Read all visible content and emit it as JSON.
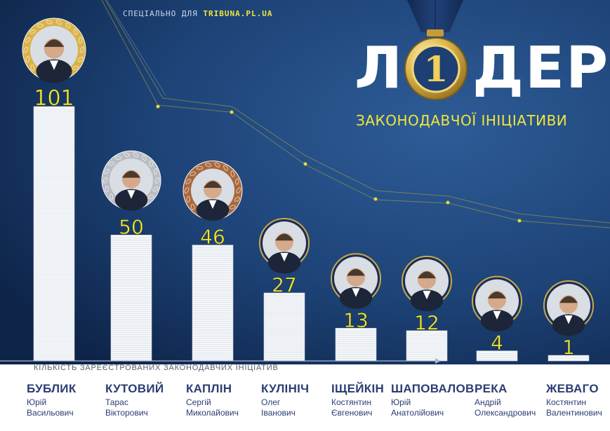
{
  "credit": {
    "prefix": "СПЕЦІАЛЬНО ДЛЯ",
    "site": "TRIBUNA.PL.UA"
  },
  "title": {
    "left": "Л",
    "medal_number": "1",
    "right": "ДЕР"
  },
  "subtitle": "ЗАКОНОДАВЧОЇ ІНІЦІАТИВИ",
  "colors": {
    "background_top": "#0f2750",
    "background_bottom": "#244e86",
    "accent": "#f0e63c",
    "name_text": "#2b3d73",
    "gold": "#d9b24a",
    "silver": "#b9bcc2",
    "bronze": "#a9683c",
    "ribbon": "#17335f"
  },
  "chart_data": {
    "type": "bar",
    "title": "",
    "xlabel": "КІЛЬКІСТЬ ЗАРЕЄСТРОВАНИХ ЗАКОНОДАВЧИХ ІНІЦІАТИВ",
    "ylabel": "",
    "ylim": [
      0,
      101
    ],
    "grid": false,
    "legend": "none",
    "categories": [
      "БУБЛИК",
      "КУТОВИЙ",
      "КАПЛІН",
      "КУЛІНІЧ",
      "ІЩЕЙКІН",
      "ШАПОВАЛОВ",
      "РЕКА",
      "ЖЕВАГО"
    ],
    "values": [
      101,
      50,
      46,
      27,
      13,
      12,
      4,
      1
    ],
    "value_labels": [
      "101",
      "50",
      "46",
      "27",
      "13",
      "12",
      "4",
      "1"
    ],
    "medals": [
      "gold",
      "silver",
      "bronze",
      "none",
      "none",
      "none",
      "none",
      "none"
    ]
  },
  "people": [
    {
      "surname": "БУБЛИК",
      "first": "Юрій",
      "patronymic": "Васильович"
    },
    {
      "surname": "КУТОВИЙ",
      "first": "Тарас",
      "patronymic": "Вікторович"
    },
    {
      "surname": "КАПЛІН",
      "first": "Сергій",
      "patronymic": "Миколайович"
    },
    {
      "surname": "КУЛІНІЧ",
      "first": "Олег",
      "patronymic": "Іванович"
    },
    {
      "surname": "ІЩЕЙКІН",
      "first": "Костянтин",
      "patronymic": "Євгенович"
    },
    {
      "surname": "ШАПОВАЛОВ",
      "first": "Юрій",
      "patronymic": "Анатолійович"
    },
    {
      "surname": "РЕКА",
      "first": "Андрій",
      "patronymic": "Олександрович"
    },
    {
      "surname": "ЖЕВАГО",
      "first": "Костянтин",
      "patronymic": "Валентинович"
    }
  ],
  "icons": {
    "portrait": "portrait-icon",
    "medal": "medal-icon",
    "paper_stack": "paper-stack-icon"
  }
}
